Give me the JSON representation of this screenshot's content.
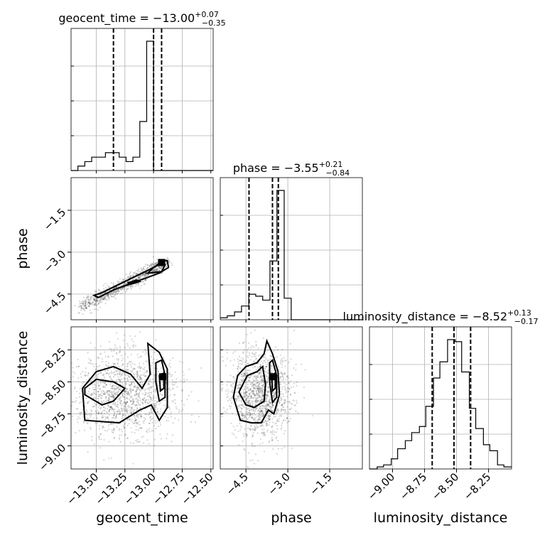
{
  "chart_data": {
    "type": "corner",
    "parameters": [
      "geocent_time",
      "phase",
      "luminosity_distance"
    ],
    "titles": [
      {
        "param": "geocent_time",
        "text": "geocent_time = −13.00",
        "plus": "+0.07",
        "minus": "−0.35"
      },
      {
        "param": "phase",
        "text": "phase = −3.55",
        "plus": "+0.21",
        "minus": "−0.84"
      },
      {
        "param": "luminosity_distance",
        "text": "luminosity_distance = −8.52",
        "plus": "+0.13",
        "minus": "−0.17"
      }
    ],
    "axis_labels": {
      "x": [
        "geocent_time",
        "phase",
        "luminosity_distance"
      ],
      "y": [
        "phase",
        "luminosity_distance"
      ]
    },
    "ranges": {
      "geocent_time": [
        -13.72,
        -12.48
      ],
      "phase": [
        -5.42,
        -0.33
      ],
      "luminosity_distance": [
        -9.18,
        -8.07
      ]
    },
    "ticks": {
      "geocent_time": {
        "values": [
          -13.5,
          -13.25,
          -13.0,
          -12.75,
          -12.5
        ],
        "labels": [
          "−13.50",
          "−13.25",
          "−13.00",
          "−12.75",
          "−12.50"
        ]
      },
      "phase": {
        "values": [
          -4.5,
          -3.0,
          -1.5
        ],
        "labels": [
          "−4.5",
          "−3.0",
          "−1.5"
        ]
      },
      "luminosity_distance": {
        "values": [
          -9.0,
          -8.75,
          -8.5,
          -8.25
        ],
        "labels": [
          "−9.00",
          "−8.75",
          "−8.50",
          "−8.25"
        ]
      }
    },
    "quantiles": {
      "geocent_time": [
        -13.35,
        -13.0,
        -12.93
      ],
      "phase": [
        -4.39,
        -3.55,
        -3.34
      ],
      "luminosity_distance": [
        -8.69,
        -8.52,
        -8.39
      ]
    },
    "histograms": {
      "geocent_time": {
        "edges": [
          -13.72,
          -13.66,
          -13.6,
          -13.54,
          -13.48,
          -13.42,
          -13.36,
          -13.3,
          -13.24,
          -13.18,
          -13.12,
          -13.06,
          -13.0,
          -12.94,
          -12.88,
          -12.82,
          -12.76,
          -12.7,
          -12.64,
          -12.58,
          -12.52,
          -12.48
        ],
        "counts": [
          0,
          1,
          2,
          3,
          3,
          4,
          4,
          3,
          2,
          3,
          11,
          29,
          0,
          0,
          0,
          0,
          0,
          0,
          0,
          0,
          0
        ]
      },
      "phase": {
        "edges": [
          -5.42,
          -5.17,
          -4.91,
          -4.66,
          -4.4,
          -4.15,
          -3.9,
          -3.64,
          -3.39,
          -3.13,
          -2.88,
          -2.62,
          -2.37,
          -2.11,
          -1.86,
          -1.6,
          -1.35,
          -1.09,
          -0.84,
          -0.58,
          -0.33
        ],
        "counts": [
          1,
          2,
          4,
          7,
          13,
          12,
          10,
          30,
          66,
          11,
          0,
          0,
          0,
          0,
          0,
          0,
          0,
          0,
          0,
          0
        ]
      },
      "luminosity_distance": {
        "edges": [
          -9.18,
          -9.12,
          -9.07,
          -9.01,
          -8.96,
          -8.9,
          -8.85,
          -8.79,
          -8.74,
          -8.68,
          -8.63,
          -8.57,
          -8.51,
          -8.46,
          -8.4,
          -8.35,
          -8.29,
          -8.24,
          -8.18,
          -8.13,
          -8.07
        ],
        "counts": [
          0,
          1,
          2,
          5,
          10,
          14,
          18,
          21,
          31,
          45,
          53,
          64,
          63,
          48,
          30,
          20,
          12,
          9,
          2,
          1
        ]
      }
    },
    "contours": {
      "phase_vs_geocent_time": [
        [
          [
            -13.52,
            -4.55
          ],
          [
            -13.45,
            -4.45
          ],
          [
            -13.3,
            -4.15
          ],
          [
            -13.15,
            -3.85
          ],
          [
            -13.0,
            -3.55
          ],
          [
            -12.92,
            -3.3
          ],
          [
            -12.88,
            -3.3
          ],
          [
            -12.87,
            -3.55
          ],
          [
            -12.95,
            -3.75
          ],
          [
            -13.15,
            -4.05
          ],
          [
            -13.35,
            -4.35
          ],
          [
            -13.48,
            -4.62
          ],
          [
            -13.52,
            -4.55
          ]
        ],
        [
          [
            -13.05,
            -3.75
          ],
          [
            -13.0,
            -3.55
          ],
          [
            -12.93,
            -3.4
          ],
          [
            -12.9,
            -3.45
          ],
          [
            -12.93,
            -3.7
          ],
          [
            -13.05,
            -3.75
          ]
        ],
        [
          [
            -13.22,
            -4.1
          ],
          [
            -13.15,
            -4.0
          ],
          [
            -13.12,
            -4.05
          ],
          [
            -13.2,
            -4.15
          ],
          [
            -13.22,
            -4.1
          ]
        ]
      ],
      "luminosity_distance_vs_geocent_time": [
        [
          [
            -13.6,
            -8.8
          ],
          [
            -13.62,
            -8.55
          ],
          [
            -13.5,
            -8.42
          ],
          [
            -13.35,
            -8.38
          ],
          [
            -13.2,
            -8.44
          ],
          [
            -13.1,
            -8.55
          ],
          [
            -13.03,
            -8.44
          ],
          [
            -13.05,
            -8.2
          ],
          [
            -12.95,
            -8.27
          ],
          [
            -12.88,
            -8.4
          ],
          [
            -12.88,
            -8.7
          ],
          [
            -12.95,
            -8.8
          ],
          [
            -13.02,
            -8.68
          ],
          [
            -13.12,
            -8.72
          ],
          [
            -13.3,
            -8.82
          ],
          [
            -13.6,
            -8.8
          ]
        ],
        [
          [
            -13.6,
            -8.55
          ],
          [
            -13.5,
            -8.48
          ],
          [
            -13.35,
            -8.5
          ],
          [
            -13.25,
            -8.55
          ],
          [
            -13.35,
            -8.65
          ],
          [
            -13.45,
            -8.68
          ],
          [
            -13.6,
            -8.6
          ],
          [
            -13.6,
            -8.55
          ]
        ],
        [
          [
            -12.98,
            -8.35
          ],
          [
            -12.93,
            -8.33
          ],
          [
            -12.9,
            -8.45
          ],
          [
            -12.9,
            -8.62
          ],
          [
            -12.95,
            -8.65
          ],
          [
            -12.98,
            -8.5
          ],
          [
            -12.98,
            -8.35
          ]
        ],
        [
          [
            -12.95,
            -8.45
          ],
          [
            -12.91,
            -8.43
          ],
          [
            -12.91,
            -8.55
          ],
          [
            -12.94,
            -8.57
          ],
          [
            -12.95,
            -8.45
          ]
        ]
      ],
      "luminosity_distance_vs_phase": [
        [
          [
            -4.7,
            -8.8
          ],
          [
            -4.95,
            -8.62
          ],
          [
            -4.8,
            -8.45
          ],
          [
            -4.5,
            -8.38
          ],
          [
            -4.1,
            -8.35
          ],
          [
            -3.85,
            -8.28
          ],
          [
            -3.75,
            -8.18
          ],
          [
            -3.55,
            -8.28
          ],
          [
            -3.35,
            -8.42
          ],
          [
            -3.3,
            -8.6
          ],
          [
            -3.5,
            -8.75
          ],
          [
            -3.7,
            -8.72
          ],
          [
            -3.95,
            -8.82
          ],
          [
            -4.3,
            -8.82
          ],
          [
            -4.7,
            -8.8
          ]
        ],
        [
          [
            -4.5,
            -8.68
          ],
          [
            -4.75,
            -8.58
          ],
          [
            -4.45,
            -8.45
          ],
          [
            -4.1,
            -8.42
          ],
          [
            -3.9,
            -8.38
          ],
          [
            -3.8,
            -8.52
          ],
          [
            -3.85,
            -8.65
          ],
          [
            -4.2,
            -8.7
          ],
          [
            -4.5,
            -8.68
          ]
        ],
        [
          [
            -3.65,
            -8.35
          ],
          [
            -3.55,
            -8.33
          ],
          [
            -3.4,
            -8.45
          ],
          [
            -3.4,
            -8.62
          ],
          [
            -3.55,
            -8.66
          ],
          [
            -3.65,
            -8.5
          ],
          [
            -3.65,
            -8.35
          ]
        ],
        [
          [
            -3.58,
            -8.45
          ],
          [
            -3.45,
            -8.43
          ],
          [
            -3.45,
            -8.55
          ],
          [
            -3.55,
            -8.57
          ],
          [
            -3.58,
            -8.45
          ]
        ]
      ]
    },
    "scatter_density": {
      "phase_vs_geocent_time": {
        "center": [
          -13.3,
          -4.1
        ],
        "count": 900
      },
      "luminosity_distance_vs_geocent_time": {
        "center": [
          -13.25,
          -8.6
        ],
        "count": 1400
      },
      "luminosity_distance_vs_phase": {
        "center": [
          -4.0,
          -8.6
        ],
        "count": 1400
      }
    },
    "grid": true
  }
}
